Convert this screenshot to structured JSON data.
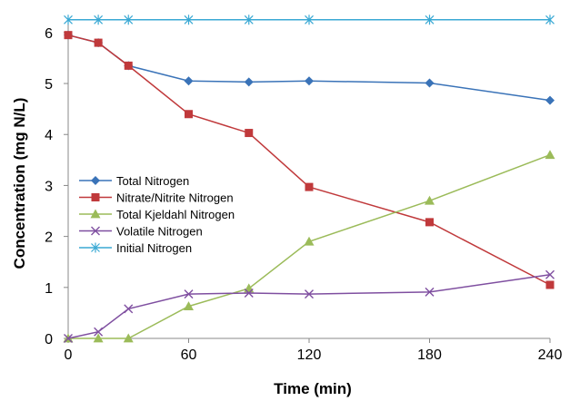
{
  "chart_data": {
    "type": "line",
    "title": "",
    "xlabel": "Time (min)",
    "ylabel": "Concentration (mg N/L)",
    "xlim": [
      0,
      240
    ],
    "ylim": [
      0,
      6.3
    ],
    "xticks": [
      "0",
      "60",
      "120",
      "180",
      "240"
    ],
    "yticks": [
      "0",
      "1",
      "2",
      "3",
      "4",
      "5",
      "6"
    ],
    "grid": false,
    "legend_position": "middle-left",
    "series": [
      {
        "name": "Total Nitrogen",
        "color": "#3a73b8",
        "marker": "diamond",
        "x": [
          0,
          15,
          30,
          60,
          90,
          120,
          180,
          240
        ],
        "values": [
          5.95,
          5.8,
          5.35,
          5.05,
          5.03,
          5.05,
          5.01,
          4.67
        ]
      },
      {
        "name": "Nitrate/Nitrite Nitrogen",
        "color": "#c0393b",
        "marker": "square",
        "x": [
          0,
          15,
          30,
          60,
          90,
          120,
          180,
          240
        ],
        "values": [
          5.95,
          5.8,
          5.35,
          4.4,
          4.03,
          2.97,
          2.28,
          1.05
        ]
      },
      {
        "name": "Total Kjeldahl Nitrogen",
        "color": "#9bbb59",
        "marker": "triangle",
        "x": [
          0,
          15,
          30,
          60,
          90,
          120,
          180,
          240
        ],
        "values": [
          0,
          0,
          0,
          0.63,
          0.98,
          1.9,
          2.7,
          3.6
        ]
      },
      {
        "name": "Volatile Nitrogen",
        "color": "#7f4fa0",
        "marker": "x",
        "x": [
          0,
          15,
          30,
          60,
          90,
          120,
          180,
          240
        ],
        "values": [
          0,
          0.13,
          0.58,
          0.87,
          0.89,
          0.87,
          0.91,
          1.25
        ]
      },
      {
        "name": "Initial Nitrogen",
        "color": "#3aa9d4",
        "marker": "star",
        "x": [
          0,
          15,
          30,
          60,
          90,
          120,
          180,
          240
        ],
        "values": [
          6.25,
          6.25,
          6.25,
          6.25,
          6.25,
          6.25,
          6.25,
          6.25
        ]
      }
    ]
  }
}
